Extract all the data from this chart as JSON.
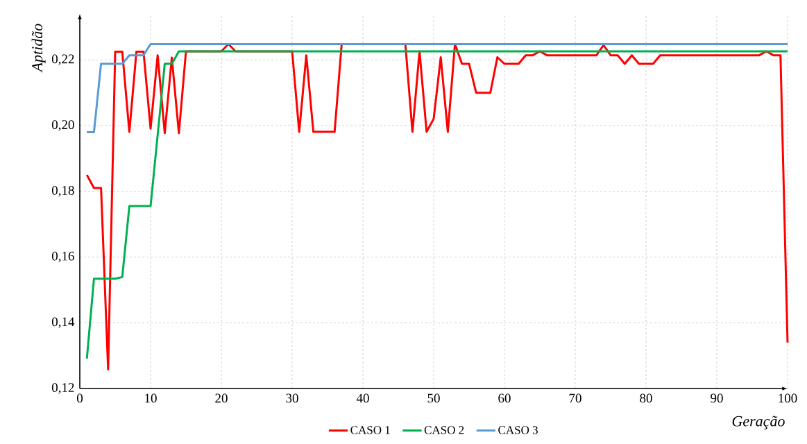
{
  "chart_data": {
    "type": "line",
    "xlabel": "Geração",
    "ylabel": "Aptidão",
    "xlim": [
      0,
      100
    ],
    "ylim": [
      0.12,
      0.234
    ],
    "xticks": [
      0,
      10,
      20,
      30,
      40,
      50,
      60,
      70,
      80,
      90,
      100
    ],
    "yticks": [
      {
        "value": 0.12,
        "label": "0,12"
      },
      {
        "value": 0.14,
        "label": "0,14"
      },
      {
        "value": 0.16,
        "label": "0,16"
      },
      {
        "value": 0.18,
        "label": "0,18"
      },
      {
        "value": 0.2,
        "label": "0,20"
      },
      {
        "value": 0.22,
        "label": "0,22"
      }
    ],
    "grid": true,
    "legend": "bottom",
    "series": [
      {
        "name": "CASO 1",
        "color": "#ff0000",
        "x": [
          1,
          2,
          3,
          4,
          5,
          6,
          7,
          8,
          9,
          10,
          11,
          12,
          13,
          14,
          15,
          20,
          21,
          22,
          30,
          31,
          32,
          33,
          36,
          37,
          46,
          47,
          48,
          49,
          50,
          51,
          52,
          53,
          54,
          55,
          56,
          58,
          59,
          60,
          62,
          63,
          64,
          65,
          66,
          73,
          74,
          75,
          76,
          77,
          78,
          79,
          81,
          82,
          96,
          97,
          98,
          99,
          100
        ],
        "values": [
          0.185,
          0.181,
          0.181,
          0.1258,
          0.2225,
          0.2225,
          0.1981,
          0.2225,
          0.2225,
          0.1991,
          0.2214,
          0.1977,
          0.2207,
          0.1977,
          0.2226,
          0.2226,
          0.2248,
          0.2226,
          0.2226,
          0.1981,
          0.2214,
          0.1981,
          0.1981,
          0.2248,
          0.2248,
          0.1981,
          0.2226,
          0.1981,
          0.2021,
          0.2208,
          0.1981,
          0.2248,
          0.2188,
          0.2188,
          0.21,
          0.21,
          0.2208,
          0.2188,
          0.2188,
          0.2214,
          0.2214,
          0.2226,
          0.2214,
          0.2214,
          0.2245,
          0.2214,
          0.2214,
          0.2188,
          0.2214,
          0.2188,
          0.2188,
          0.2214,
          0.2214,
          0.2226,
          0.2214,
          0.2214,
          0.134
        ]
      },
      {
        "name": "CASO 2",
        "color": "#00b050",
        "x": [
          1,
          2,
          5,
          6,
          7,
          10,
          11,
          12,
          13,
          14,
          100
        ],
        "values": [
          0.1291,
          0.1534,
          0.1534,
          0.1539,
          0.1755,
          0.1755,
          0.1971,
          0.2188,
          0.2188,
          0.2226,
          0.2226
        ]
      },
      {
        "name": "CASO 3",
        "color": "#5b9bd5",
        "x": [
          1,
          2,
          3,
          6,
          7,
          9,
          10,
          100
        ],
        "values": [
          0.198,
          0.198,
          0.2188,
          0.2188,
          0.2214,
          0.2214,
          0.2248,
          0.2248
        ]
      }
    ]
  }
}
